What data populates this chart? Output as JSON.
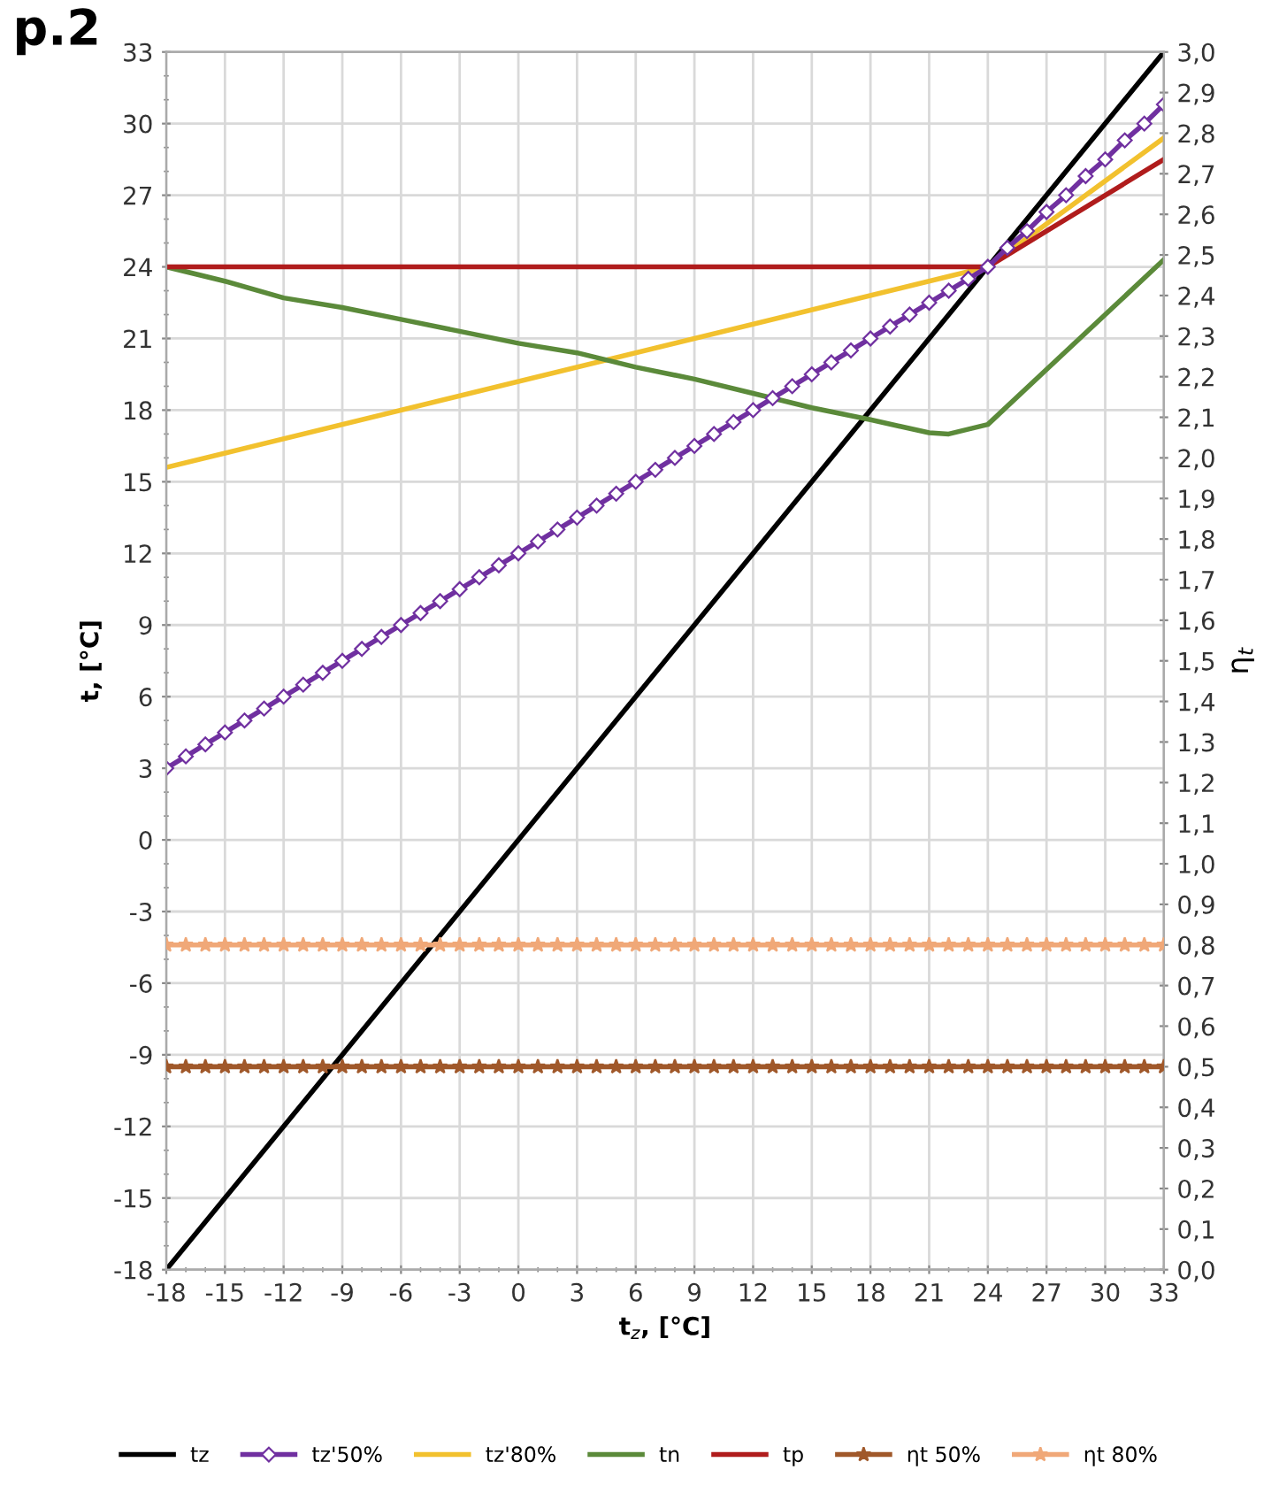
{
  "chart_data": {
    "type": "line",
    "xlabel": "t$_{z}$, [°C]",
    "ylabel": "t, [°C]",
    "y2label": "η$_{t}$",
    "annotations": [
      "p.2"
    ],
    "xlim": [
      -18,
      33
    ],
    "xticks": [
      -18,
      -15,
      -12,
      -9,
      -6,
      -3,
      0,
      3,
      6,
      9,
      12,
      15,
      18,
      21,
      24,
      27,
      30,
      33
    ],
    "ylim": [
      -18,
      33
    ],
    "yticks": [
      -18,
      -15,
      -12,
      -9,
      -6,
      -3,
      0,
      3,
      6,
      9,
      12,
      15,
      18,
      21,
      24,
      27,
      30,
      33
    ],
    "y2lim": [
      0,
      3
    ],
    "y2ticks": [
      {
        "value": 0,
        "label": "0,0"
      },
      {
        "value": 0.1,
        "label": "0,1"
      },
      {
        "value": 0.2,
        "label": "0,2"
      },
      {
        "value": 0.3,
        "label": "0,3"
      },
      {
        "value": 0.4,
        "label": "0,4"
      },
      {
        "value": 0.5,
        "label": "0,5"
      },
      {
        "value": 0.6,
        "label": "0,6"
      },
      {
        "value": 0.7,
        "label": "0,7"
      },
      {
        "value": 0.8,
        "label": "0,8"
      },
      {
        "value": 0.9,
        "label": "0,9"
      },
      {
        "value": 1,
        "label": "1,0"
      },
      {
        "value": 1.1,
        "label": "1,1"
      },
      {
        "value": 1.2,
        "label": "1,2"
      },
      {
        "value": 1.3,
        "label": "1,3"
      },
      {
        "value": 1.4,
        "label": "1,4"
      },
      {
        "value": 1.5,
        "label": "1,5"
      },
      {
        "value": 1.6,
        "label": "1,6"
      },
      {
        "value": 1.7,
        "label": "1,7"
      },
      {
        "value": 1.8,
        "label": "1,8"
      },
      {
        "value": 1.9,
        "label": "1,9"
      },
      {
        "value": 2,
        "label": "2,0"
      },
      {
        "value": 2.1,
        "label": "2,1"
      },
      {
        "value": 2.2,
        "label": "2,2"
      },
      {
        "value": 2.3,
        "label": "2,3"
      },
      {
        "value": 2.4,
        "label": "2,4"
      },
      {
        "value": 2.5,
        "label": "2,5"
      },
      {
        "value": 2.6,
        "label": "2,6"
      },
      {
        "value": 2.7,
        "label": "2,7"
      },
      {
        "value": 2.8,
        "label": "2,8"
      },
      {
        "value": 2.9,
        "label": "2,9"
      },
      {
        "value": 3,
        "label": "3,0"
      }
    ],
    "grid": true,
    "legend": "bottom",
    "series": [
      {
        "name": "tz",
        "color": "#000000",
        "x": [
          -18,
          33
        ],
        "values": [
          -18,
          33
        ]
      },
      {
        "name": "tz'50%",
        "color": "#7030a0",
        "marker": "diamond",
        "x": [
          -18,
          -17,
          -16,
          -15,
          -14,
          -13,
          -12,
          -11,
          -10,
          -9,
          -8,
          -7,
          -6,
          -5,
          -4,
          -3,
          -2,
          -1,
          0,
          1,
          2,
          3,
          4,
          5,
          6,
          7,
          8,
          9,
          10,
          11,
          12,
          13,
          14,
          15,
          16,
          17,
          18,
          19,
          20,
          21,
          22,
          23,
          24,
          25,
          26,
          27,
          28,
          29,
          30,
          31,
          32,
          33
        ],
        "values": [
          3,
          3.5,
          4,
          4.5,
          5,
          5.5,
          6,
          6.5,
          7,
          7.5,
          8,
          8.5,
          9,
          9.5,
          10,
          10.5,
          11,
          11.5,
          12,
          12.5,
          13,
          13.5,
          14,
          14.5,
          15,
          15.5,
          16,
          16.5,
          17,
          17.5,
          18,
          18.5,
          19,
          19.5,
          20,
          20.5,
          21,
          21.5,
          22,
          22.5,
          23,
          23.5,
          24,
          24.8,
          25.5,
          26.3,
          27,
          27.8,
          28.5,
          29.3,
          30,
          30.8
        ]
      },
      {
        "name": "tz'80%",
        "color": "#f2c12e",
        "x": [
          -18,
          24,
          33
        ],
        "values": [
          15.6,
          24,
          29.4
        ]
      },
      {
        "name": "tn",
        "color": "#5b8a3a",
        "x": [
          -18,
          -15,
          -12,
          -9,
          -6,
          -3,
          0,
          3,
          6,
          9,
          12,
          15,
          18,
          21,
          22,
          24,
          27,
          30,
          33
        ],
        "values": [
          24,
          23.4,
          22.7,
          22.3,
          21.8,
          21.3,
          20.8,
          20.4,
          19.8,
          19.3,
          18.7,
          18.1,
          17.6,
          17.05,
          17,
          17.4,
          19.7,
          22,
          24.3
        ]
      },
      {
        "name": "tp",
        "color": "#b01c1c",
        "x": [
          -18,
          24,
          33
        ],
        "values": [
          24,
          24,
          28.5
        ]
      },
      {
        "name": "ηt 50%",
        "color": "#a0582a",
        "axis": "y2",
        "marker": "star",
        "x": [
          -18,
          -17,
          -16,
          -15,
          -14,
          -13,
          -12,
          -11,
          -10,
          -9,
          -8,
          -7,
          -6,
          -5,
          -4,
          -3,
          -2,
          -1,
          0,
          1,
          2,
          3,
          4,
          5,
          6,
          7,
          8,
          9,
          10,
          11,
          12,
          13,
          14,
          15,
          16,
          17,
          18,
          19,
          20,
          21,
          22,
          23,
          24,
          25,
          26,
          27,
          28,
          29,
          30,
          31,
          32,
          33
        ],
        "values": [
          0.5,
          0.5,
          0.5,
          0.5,
          0.5,
          0.5,
          0.5,
          0.5,
          0.5,
          0.5,
          0.5,
          0.5,
          0.5,
          0.5,
          0.5,
          0.5,
          0.5,
          0.5,
          0.5,
          0.5,
          0.5,
          0.5,
          0.5,
          0.5,
          0.5,
          0.5,
          0.5,
          0.5,
          0.5,
          0.5,
          0.5,
          0.5,
          0.5,
          0.5,
          0.5,
          0.5,
          0.5,
          0.5,
          0.5,
          0.5,
          0.5,
          0.5,
          0.5,
          0.5,
          0.5,
          0.5,
          0.5,
          0.5,
          0.5,
          0.5,
          0.5,
          0.5
        ]
      },
      {
        "name": "ηt 80%",
        "color": "#f0a878",
        "axis": "y2",
        "marker": "star",
        "x": [
          -18,
          -17,
          -16,
          -15,
          -14,
          -13,
          -12,
          -11,
          -10,
          -9,
          -8,
          -7,
          -6,
          -5,
          -4,
          -3,
          -2,
          -1,
          0,
          1,
          2,
          3,
          4,
          5,
          6,
          7,
          8,
          9,
          10,
          11,
          12,
          13,
          14,
          15,
          16,
          17,
          18,
          19,
          20,
          21,
          22,
          23,
          24,
          25,
          26,
          27,
          28,
          29,
          30,
          31,
          32,
          33
        ],
        "values": [
          0.8,
          0.8,
          0.8,
          0.8,
          0.8,
          0.8,
          0.8,
          0.8,
          0.8,
          0.8,
          0.8,
          0.8,
          0.8,
          0.8,
          0.8,
          0.8,
          0.8,
          0.8,
          0.8,
          0.8,
          0.8,
          0.8,
          0.8,
          0.8,
          0.8,
          0.8,
          0.8,
          0.8,
          0.8,
          0.8,
          0.8,
          0.8,
          0.8,
          0.8,
          0.8,
          0.8,
          0.8,
          0.8,
          0.8,
          0.8,
          0.8,
          0.8,
          0.8,
          0.8,
          0.8,
          0.8,
          0.8,
          0.8,
          0.8,
          0.8,
          0.8,
          0.8
        ]
      }
    ]
  }
}
